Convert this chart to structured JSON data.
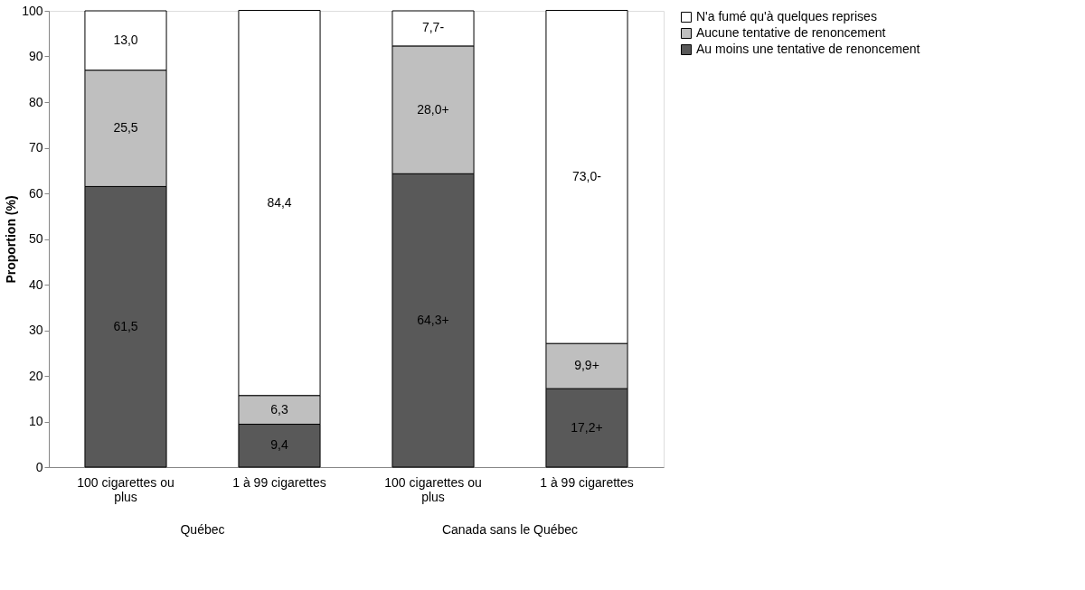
{
  "chart_data": {
    "type": "bar",
    "stacked": true,
    "ylabel": "Proportion (%)",
    "categories": [
      "100 cigarettes ou plus",
      "1 à 99 cigarettes",
      "100 cigarettes ou plus",
      "1 à 99 cigarettes"
    ],
    "series": [
      {
        "name": "Au moins une tentative de renoncement",
        "color": "#595959",
        "values": [
          61.5,
          9.4,
          64.3,
          17.2
        ],
        "value_labels": [
          "61,5",
          "9,4",
          "64,3+",
          "17,2+"
        ]
      },
      {
        "name": "Aucune tentative de renoncement",
        "color": "#bfbfbf",
        "values": [
          25.5,
          6.3,
          28.0,
          9.9
        ],
        "value_labels": [
          "25,5",
          "6,3",
          "28,0+",
          "9,9+"
        ]
      },
      {
        "name": "N'a fumé qu'à quelques reprises",
        "color": "#ffffff",
        "values": [
          13.0,
          84.4,
          7.7,
          73.0
        ],
        "value_labels": [
          "13,0",
          "84,4",
          "7,7-",
          "73,0-"
        ]
      }
    ],
    "ylim": [
      0,
      100
    ],
    "yticks": [
      0,
      10,
      20,
      30,
      40,
      50,
      60,
      70,
      80,
      90,
      100
    ],
    "grid": false,
    "legend": "right",
    "annotations": [
      "Québec",
      "Canada sans le Québec"
    ]
  }
}
